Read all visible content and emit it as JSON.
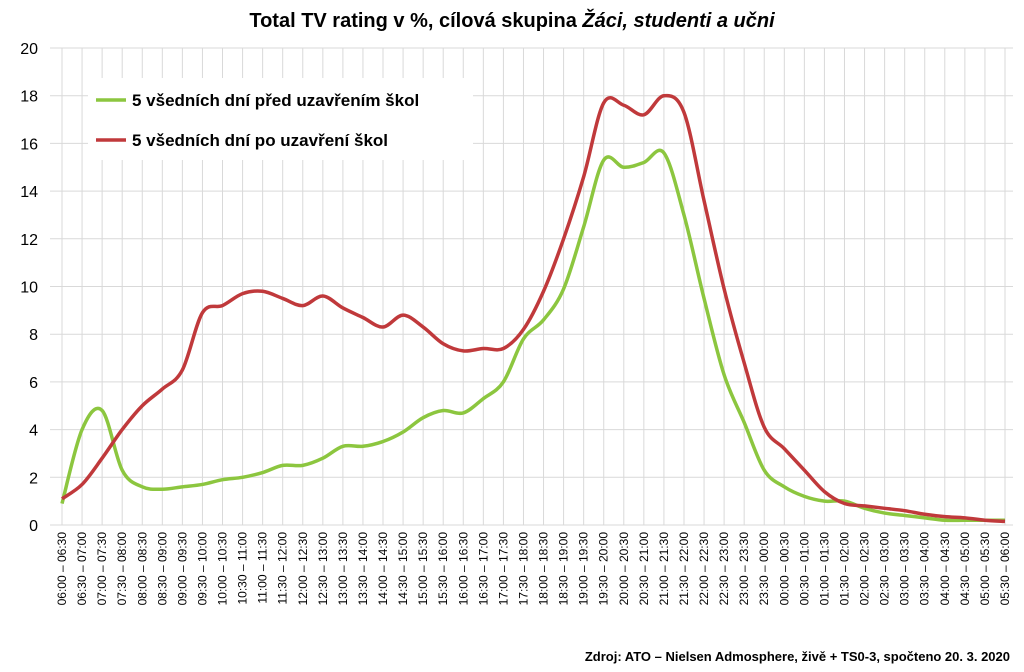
{
  "chart_data": {
    "type": "line",
    "title": "Total TV rating v %, cílová skupina",
    "title_italic": "Žáci, studenti a učni",
    "source": "Zdroj: ATO – Nielsen Admosphere, živě + TS0-3, spočteno 20. 3. 2020",
    "categories": [
      "06:00 – 06:30",
      "06:30 – 07:00",
      "07:00 – 07:30",
      "07:30 – 08:00",
      "08:00 – 08:30",
      "08:30 – 09:00",
      "09:00 – 09:30",
      "09:30 – 10:00",
      "10:00 – 10:30",
      "10:30 – 11:00",
      "11:00 – 11:30",
      "11:30 – 12:00",
      "12:00 – 12:30",
      "12:30 – 13:00",
      "13:00 – 13:30",
      "13:30 – 14:00",
      "14:00 – 14:30",
      "14:30 – 15:00",
      "15:00 – 15:30",
      "15:30 – 16:00",
      "16:00 – 16:30",
      "16:30 – 17:00",
      "17:00 – 17:30",
      "17:30 – 18:00",
      "18:00 – 18:30",
      "18:30 – 19:00",
      "19:00 – 19:30",
      "19:30 – 20:00",
      "20:00 – 20:30",
      "20:30 – 21:00",
      "21:00 – 21:30",
      "21:30 – 22:00",
      "22:00 – 22:30",
      "22:30 – 23:00",
      "23:00 – 23:30",
      "23:30 – 00:00",
      "00:00 – 00:30",
      "00:30 – 01:00",
      "01:00 – 01:30",
      "01:30 – 02:00",
      "02:00 – 02:30",
      "02:30 – 03:00",
      "03:00 – 03:30",
      "03:30 – 04:00",
      "04:00 – 04:30",
      "04:30 – 05:00",
      "05:00 – 05:30",
      "05:30 – 06:00"
    ],
    "series": [
      {
        "name": "5 všedních dní před uzavřením škol",
        "color": "#8cc63f",
        "values": [
          0.9,
          4.0,
          4.8,
          2.3,
          1.6,
          1.5,
          1.6,
          1.7,
          1.9,
          2.0,
          2.2,
          2.5,
          2.5,
          2.8,
          3.3,
          3.3,
          3.5,
          3.9,
          4.5,
          4.8,
          4.7,
          5.3,
          6.0,
          7.8,
          8.6,
          9.9,
          12.5,
          15.3,
          15.0,
          15.2,
          15.6,
          13.0,
          9.5,
          6.3,
          4.3,
          2.3,
          1.6,
          1.2,
          1.0,
          1.0,
          0.7,
          0.5,
          0.4,
          0.3,
          0.2,
          0.2,
          0.2,
          0.2
        ]
      },
      {
        "name": "5 všedních dní po uzavření škol",
        "color": "#c0393b",
        "values": [
          1.1,
          1.7,
          2.8,
          4.0,
          5.0,
          5.7,
          6.5,
          8.9,
          9.2,
          9.7,
          9.8,
          9.5,
          9.2,
          9.6,
          9.1,
          8.7,
          8.3,
          8.8,
          8.3,
          7.6,
          7.3,
          7.4,
          7.4,
          8.2,
          9.8,
          12.0,
          14.6,
          17.7,
          17.6,
          17.2,
          18.0,
          17.3,
          13.6,
          9.9,
          6.8,
          4.1,
          3.2,
          2.3,
          1.4,
          0.9,
          0.8,
          0.7,
          0.6,
          0.45,
          0.35,
          0.3,
          0.2,
          0.15
        ]
      }
    ],
    "ylim": [
      0,
      20
    ],
    "yticks": [
      0,
      2,
      4,
      6,
      8,
      10,
      12,
      14,
      16,
      18,
      20
    ],
    "grid": true,
    "legend": "upper-left"
  }
}
